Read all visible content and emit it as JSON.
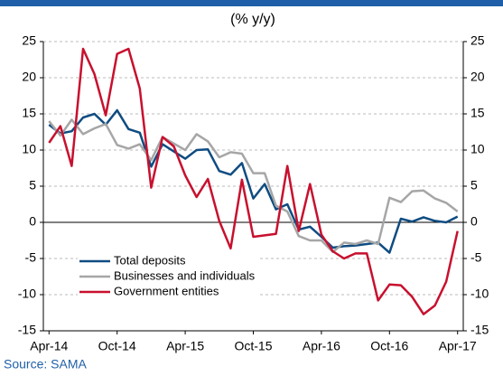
{
  "chart_data": {
    "type": "line",
    "subtitle": "(% y/y)",
    "source": "Source: SAMA",
    "categories": [
      "Apr-14",
      null,
      null,
      null,
      null,
      null,
      "Oct-14",
      null,
      null,
      null,
      null,
      null,
      "Apr-15",
      null,
      null,
      null,
      null,
      null,
      "Oct-15",
      null,
      null,
      null,
      null,
      null,
      "Apr-16",
      null,
      null,
      null,
      null,
      null,
      "Oct-16",
      null,
      null,
      null,
      null,
      null,
      "Apr-17"
    ],
    "series": [
      {
        "name": "Total deposits",
        "color": "#0f4c81",
        "values": [
          13.5,
          12.3,
          12.6,
          14.5,
          15.0,
          13.5,
          15.5,
          12.9,
          12.4,
          7.7,
          10.8,
          9.8,
          8.8,
          10.0,
          10.1,
          7.1,
          6.6,
          8.2,
          3.3,
          5.3,
          1.8,
          2.5,
          -1.0,
          -0.6,
          -2.0,
          -3.5,
          -3.3,
          -3.2,
          -3.0,
          -2.8,
          -4.2,
          0.5,
          0.1,
          0.7,
          0.2,
          0.0,
          0.8
        ]
      },
      {
        "name": "Businesses and individuals",
        "color": "#a6a6a6",
        "values": [
          14.0,
          12.0,
          14.2,
          12.2,
          13.0,
          13.6,
          10.7,
          10.2,
          10.8,
          8.6,
          11.8,
          10.9,
          10.0,
          12.2,
          11.2,
          9.0,
          9.7,
          9.5,
          6.8,
          6.8,
          2.3,
          1.5,
          -1.9,
          -2.5,
          -2.5,
          -4.1,
          -2.8,
          -3.0,
          -2.5,
          -3.0,
          3.4,
          2.8,
          4.3,
          4.4,
          3.3,
          2.7,
          1.5
        ]
      },
      {
        "name": "Government entities",
        "color": "#c8102e",
        "values": [
          11.0,
          13.3,
          7.8,
          24.0,
          20.5,
          14.8,
          23.3,
          24.0,
          18.5,
          4.8,
          11.8,
          10.5,
          6.5,
          3.5,
          6.0,
          0.2,
          -3.6,
          5.9,
          -2.0,
          -1.8,
          -1.6,
          7.8,
          -1.2,
          5.3,
          -1.7,
          -4.0,
          -5.0,
          -4.3,
          -4.3,
          -10.8,
          -8.6,
          -8.7,
          -10.3,
          -12.7,
          -11.5,
          -8.2,
          -1.2
        ]
      }
    ],
    "ylim": [
      -15,
      25
    ],
    "yticks": [
      -15,
      -10,
      -5,
      0,
      5,
      10,
      15,
      20,
      25
    ],
    "grid": true,
    "legend": "left"
  }
}
